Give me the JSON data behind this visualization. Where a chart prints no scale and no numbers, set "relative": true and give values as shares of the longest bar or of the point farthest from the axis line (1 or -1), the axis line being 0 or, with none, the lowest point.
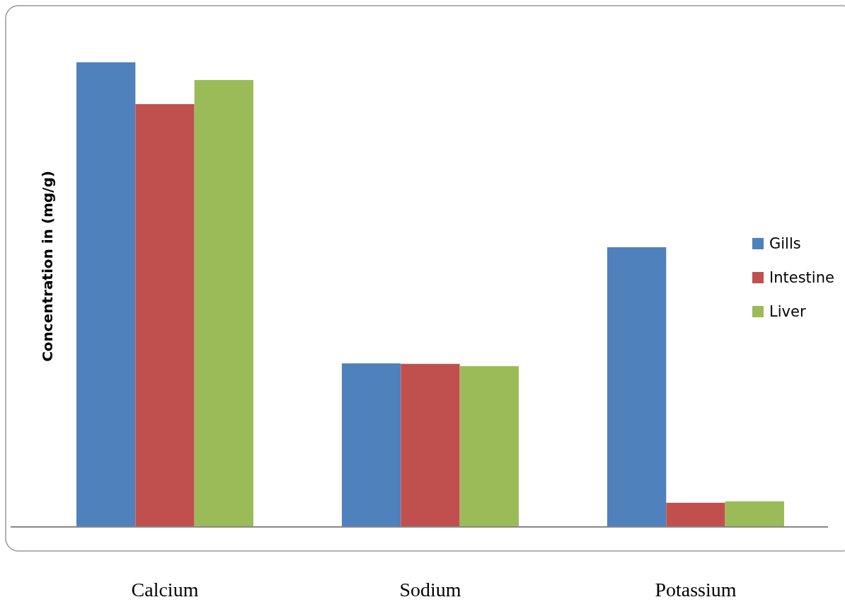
{
  "chart_data": {
    "type": "bar",
    "relative": true,
    "ylabel": "Concentration in (mg/g)",
    "categories": [
      "Calcium",
      "Sodium",
      "Potassium"
    ],
    "legend": "right",
    "series": [
      {
        "name": "Gills",
        "color": "#4f81bd",
        "values": [
          1,
          0.352,
          0.602
        ]
      },
      {
        "name": "Intestine",
        "color": "#c0504d",
        "values": [
          0.91,
          0.351,
          0.052
        ]
      },
      {
        "name": "Liver",
        "color": "#9bbb59",
        "values": [
          0.962,
          0.346,
          0.055
        ]
      }
    ]
  }
}
